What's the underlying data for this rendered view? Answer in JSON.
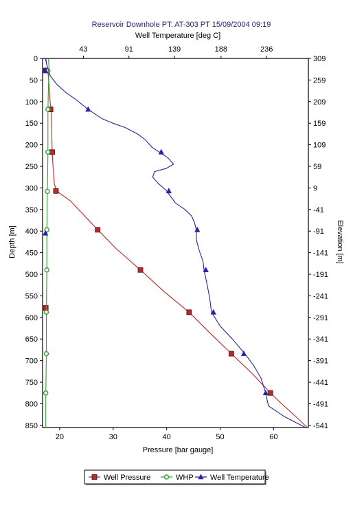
{
  "chart_data": {
    "type": "line",
    "title": "Reservoir Downhole PT:   AT-303 PT 15/09/2004 09:19",
    "x_top": {
      "label": "Well Temperature [deg C]",
      "range": [
        0,
        280
      ],
      "ticks": [
        43,
        91,
        139,
        188,
        236
      ]
    },
    "x_bottom": {
      "label": "Pressure [bar gauge]",
      "range": [
        16.8,
        66.5
      ],
      "ticks": [
        20,
        30,
        40,
        50,
        60
      ]
    },
    "y_left": {
      "label": "Depth [m]",
      "range": [
        0,
        855
      ],
      "ticks": [
        0,
        50,
        100,
        150,
        200,
        250,
        300,
        350,
        400,
        450,
        500,
        550,
        600,
        650,
        700,
        750,
        800,
        850
      ]
    },
    "y_right": {
      "label": "Elevation [m]",
      "ticks": [
        309,
        259,
        209,
        159,
        109,
        59,
        9,
        -41,
        -91,
        -141,
        -191,
        -241,
        -291,
        -341,
        -391,
        -441,
        -491,
        -541
      ]
    },
    "series": [
      {
        "name": "Well Pressure",
        "axis": "pressure",
        "color": "#cc2222",
        "marker": "square",
        "line": [
          [
            17.4,
            0
          ],
          [
            17.8,
            30
          ],
          [
            18.0,
            60
          ],
          [
            18.2,
            100
          ],
          [
            18.4,
            118
          ],
          [
            18.5,
            160
          ],
          [
            18.6,
            218
          ],
          [
            18.8,
            260
          ],
          [
            19.0,
            290
          ],
          [
            19.4,
            307
          ],
          [
            22.0,
            330
          ],
          [
            27.1,
            397
          ],
          [
            30.5,
            440
          ],
          [
            35.1,
            490
          ],
          [
            39.5,
            540
          ],
          [
            44.2,
            588
          ],
          [
            48.0,
            635
          ],
          [
            52.1,
            684
          ],
          [
            56.0,
            730
          ],
          [
            59.4,
            775
          ],
          [
            61.5,
            800
          ],
          [
            64.0,
            828
          ],
          [
            66.3,
            855
          ]
        ],
        "markers": [
          [
            17.4,
            28
          ],
          [
            18.3,
            118
          ],
          [
            18.6,
            217
          ],
          [
            19.3,
            307
          ],
          [
            27.1,
            397
          ],
          [
            35.1,
            490
          ],
          [
            44.2,
            588
          ],
          [
            52.1,
            684
          ],
          [
            59.4,
            775
          ],
          [
            17.4,
            578
          ]
        ]
      },
      {
        "name": "WHP",
        "axis": "pressure",
        "color": "#2aa62a",
        "marker": "circle",
        "line": [
          [
            17.9,
            0
          ],
          [
            18.0,
            20
          ],
          [
            17.9,
            60
          ],
          [
            17.8,
            118
          ],
          [
            17.8,
            217
          ],
          [
            17.7,
            308
          ],
          [
            17.6,
            397
          ],
          [
            17.6,
            490
          ],
          [
            17.5,
            588
          ],
          [
            17.5,
            684
          ],
          [
            17.4,
            775
          ],
          [
            17.4,
            855
          ]
        ],
        "markers": [
          [
            17.8,
            28
          ],
          [
            17.8,
            118
          ],
          [
            17.8,
            217
          ],
          [
            17.7,
            308
          ],
          [
            17.6,
            397
          ],
          [
            17.6,
            490
          ],
          [
            17.5,
            588
          ],
          [
            17.5,
            684
          ],
          [
            17.4,
            775
          ]
        ]
      },
      {
        "name": "Well Temperature",
        "axis": "temperature",
        "color": "#2222bb",
        "marker": "triangle",
        "line": [
          [
            3,
            0
          ],
          [
            5,
            20
          ],
          [
            8,
            40
          ],
          [
            15,
            60
          ],
          [
            25,
            80
          ],
          [
            35,
            95
          ],
          [
            48,
            118
          ],
          [
            56,
            130
          ],
          [
            63,
            140
          ],
          [
            74,
            150
          ],
          [
            87,
            160
          ],
          [
            100,
            175
          ],
          [
            108,
            188
          ],
          [
            115,
            205
          ],
          [
            125,
            220
          ],
          [
            132,
            230
          ],
          [
            138,
            245
          ],
          [
            130,
            255
          ],
          [
            118,
            262
          ],
          [
            116,
            275
          ],
          [
            122,
            290
          ],
          [
            130,
            305
          ],
          [
            135,
            320
          ],
          [
            140,
            335
          ],
          [
            150,
            350
          ],
          [
            157,
            365
          ],
          [
            160,
            380
          ],
          [
            162,
            397
          ],
          [
            162,
            420
          ],
          [
            165,
            445
          ],
          [
            169,
            470
          ],
          [
            170,
            490
          ],
          [
            173,
            520
          ],
          [
            176,
            555
          ],
          [
            178,
            588
          ],
          [
            187,
            620
          ],
          [
            200,
            650
          ],
          [
            213,
            684
          ],
          [
            222,
            710
          ],
          [
            230,
            740
          ],
          [
            235,
            775
          ],
          [
            238,
            805
          ],
          [
            255,
            830
          ],
          [
            277,
            855
          ]
        ],
        "markers": [
          [
            3,
            28
          ],
          [
            48,
            118
          ],
          [
            125,
            217
          ],
          [
            133,
            307
          ],
          [
            163,
            397
          ],
          [
            172,
            490
          ],
          [
            180,
            588
          ],
          [
            212,
            684
          ],
          [
            235,
            775
          ],
          [
            3,
            405
          ]
        ]
      }
    ],
    "legend": {
      "position": "bottom-center",
      "items": [
        "Well Pressure",
        "WHP",
        "Well Temperature"
      ]
    }
  }
}
